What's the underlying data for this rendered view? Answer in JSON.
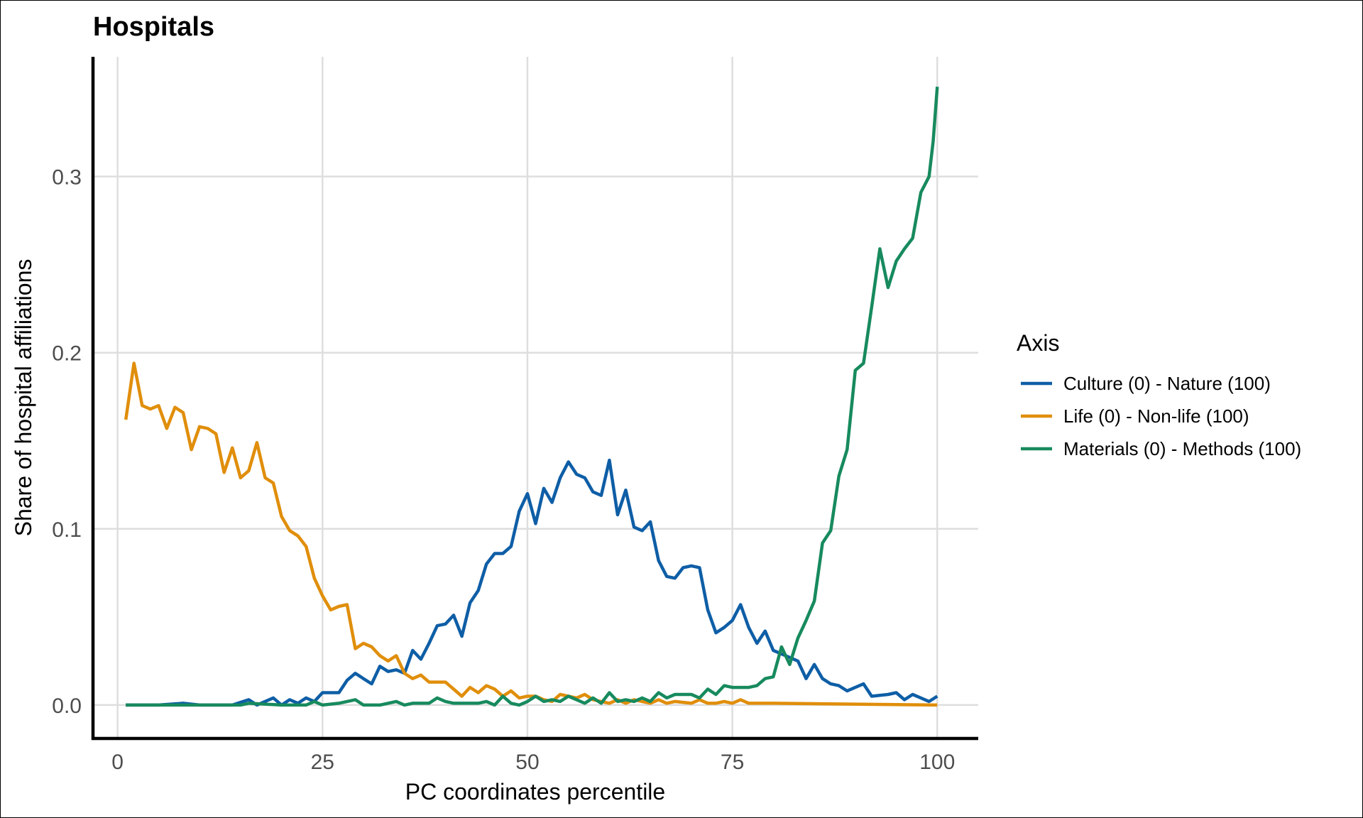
{
  "chart_data": {
    "type": "line",
    "title": "Hospitals",
    "xlabel": "PC coordinates percentile",
    "ylabel": "Share of hospital affiliations",
    "xlim": [
      -3,
      105
    ],
    "ylim": [
      -0.019,
      0.368
    ],
    "xticks": [
      0,
      25,
      50,
      75,
      100
    ],
    "xtick_labels": [
      "0",
      "25",
      "50",
      "75",
      "100"
    ],
    "yticks": [
      0.0,
      0.1,
      0.2,
      0.3
    ],
    "ytick_labels": [
      "0.0",
      "0.1",
      "0.2",
      "0.3"
    ],
    "grid": true,
    "legend": {
      "title": "Axis",
      "placement": "right"
    },
    "series": [
      {
        "name": "Culture (0) - Nature (100)",
        "color": "#0e5ea6",
        "points": [
          [
            1,
            0
          ],
          [
            5,
            0
          ],
          [
            8,
            0.001
          ],
          [
            10,
            0
          ],
          [
            14,
            0
          ],
          [
            16,
            0.003
          ],
          [
            17,
            0
          ],
          [
            19,
            0.004
          ],
          [
            20,
            0
          ],
          [
            21,
            0.003
          ],
          [
            22,
            0.001
          ],
          [
            23,
            0.004
          ],
          [
            24,
            0.002
          ],
          [
            25,
            0.007
          ],
          [
            27,
            0.007
          ],
          [
            28,
            0.014
          ],
          [
            29,
            0.018
          ],
          [
            30,
            0.015
          ],
          [
            31,
            0.012
          ],
          [
            32,
            0.022
          ],
          [
            33,
            0.019
          ],
          [
            34,
            0.02
          ],
          [
            35,
            0.018
          ],
          [
            36,
            0.031
          ],
          [
            37,
            0.026
          ],
          [
            38,
            0.035
          ],
          [
            39,
            0.045
          ],
          [
            40,
            0.046
          ],
          [
            41,
            0.051
          ],
          [
            42,
            0.039
          ],
          [
            43,
            0.058
          ],
          [
            44,
            0.065
          ],
          [
            45,
            0.08
          ],
          [
            46,
            0.086
          ],
          [
            47,
            0.086
          ],
          [
            48,
            0.09
          ],
          [
            49,
            0.11
          ],
          [
            50,
            0.12
          ],
          [
            51,
            0.103
          ],
          [
            52,
            0.123
          ],
          [
            53,
            0.115
          ],
          [
            54,
            0.129
          ],
          [
            55,
            0.138
          ],
          [
            56,
            0.131
          ],
          [
            57,
            0.129
          ],
          [
            58,
            0.121
          ],
          [
            59,
            0.119
          ],
          [
            60,
            0.139
          ],
          [
            61,
            0.108
          ],
          [
            62,
            0.122
          ],
          [
            63,
            0.101
          ],
          [
            64,
            0.099
          ],
          [
            65,
            0.104
          ],
          [
            66,
            0.082
          ],
          [
            67,
            0.073
          ],
          [
            68,
            0.072
          ],
          [
            69,
            0.078
          ],
          [
            70,
            0.079
          ],
          [
            71,
            0.078
          ],
          [
            72,
            0.054
          ],
          [
            73,
            0.041
          ],
          [
            74,
            0.044
          ],
          [
            75,
            0.048
          ],
          [
            76,
            0.057
          ],
          [
            77,
            0.044
          ],
          [
            78,
            0.035
          ],
          [
            79,
            0.042
          ],
          [
            80,
            0.031
          ],
          [
            81,
            0.029
          ],
          [
            82,
            0.027
          ],
          [
            83,
            0.025
          ],
          [
            84,
            0.015
          ],
          [
            85,
            0.023
          ],
          [
            86,
            0.015
          ],
          [
            87,
            0.012
          ],
          [
            88,
            0.011
          ],
          [
            89,
            0.008
          ],
          [
            90,
            0.01
          ],
          [
            91,
            0.012
          ],
          [
            92,
            0.005
          ],
          [
            94,
            0.006
          ],
          [
            95,
            0.007
          ],
          [
            96,
            0.003
          ],
          [
            97,
            0.006
          ],
          [
            98,
            0.004
          ],
          [
            99,
            0.002
          ],
          [
            100,
            0.005
          ]
        ]
      },
      {
        "name": "Life (0) - Non-life (100)",
        "color": "#e08e0b",
        "points": [
          [
            1,
            0.162
          ],
          [
            2,
            0.194
          ],
          [
            3,
            0.17
          ],
          [
            4,
            0.168
          ],
          [
            5,
            0.17
          ],
          [
            6,
            0.157
          ],
          [
            7,
            0.169
          ],
          [
            8,
            0.166
          ],
          [
            9,
            0.145
          ],
          [
            10,
            0.158
          ],
          [
            11,
            0.157
          ],
          [
            12,
            0.154
          ],
          [
            13,
            0.132
          ],
          [
            14,
            0.146
          ],
          [
            15,
            0.129
          ],
          [
            16,
            0.133
          ],
          [
            17,
            0.149
          ],
          [
            18,
            0.129
          ],
          [
            19,
            0.126
          ],
          [
            20,
            0.107
          ],
          [
            21,
            0.099
          ],
          [
            22,
            0.096
          ],
          [
            23,
            0.09
          ],
          [
            24,
            0.072
          ],
          [
            25,
            0.062
          ],
          [
            26,
            0.054
          ],
          [
            27,
            0.056
          ],
          [
            28,
            0.057
          ],
          [
            29,
            0.032
          ],
          [
            30,
            0.035
          ],
          [
            31,
            0.033
          ],
          [
            32,
            0.028
          ],
          [
            33,
            0.025
          ],
          [
            34,
            0.028
          ],
          [
            35,
            0.018
          ],
          [
            36,
            0.015
          ],
          [
            37,
            0.017
          ],
          [
            38,
            0.013
          ],
          [
            39,
            0.013
          ],
          [
            40,
            0.013
          ],
          [
            41,
            0.009
          ],
          [
            42,
            0.005
          ],
          [
            43,
            0.01
          ],
          [
            44,
            0.007
          ],
          [
            45,
            0.011
          ],
          [
            46,
            0.009
          ],
          [
            47,
            0.005
          ],
          [
            48,
            0.008
          ],
          [
            49,
            0.004
          ],
          [
            50,
            0.005
          ],
          [
            51,
            0.005
          ],
          [
            52,
            0.003
          ],
          [
            53,
            0.002
          ],
          [
            54,
            0.006
          ],
          [
            55,
            0.005
          ],
          [
            56,
            0.004
          ],
          [
            57,
            0.006
          ],
          [
            58,
            0.003
          ],
          [
            60,
            0.001
          ],
          [
            61,
            0.003
          ],
          [
            62,
            0.001
          ],
          [
            63,
            0.003
          ],
          [
            64,
            0.002
          ],
          [
            65,
            0.001
          ],
          [
            66,
            0.003
          ],
          [
            67,
            0.001
          ],
          [
            68,
            0.002
          ],
          [
            70,
            0.001
          ],
          [
            71,
            0.003
          ],
          [
            72,
            0.001
          ],
          [
            73,
            0.001
          ],
          [
            74,
            0.002
          ],
          [
            75,
            0.001
          ],
          [
            76,
            0.003
          ],
          [
            77,
            0.001
          ],
          [
            80,
            0.001
          ],
          [
            100,
            0
          ]
        ]
      },
      {
        "name": "Materials (0) - Methods (100)",
        "color": "#178a5e",
        "points": [
          [
            1,
            0
          ],
          [
            10,
            0
          ],
          [
            15,
            0
          ],
          [
            16,
            0.001
          ],
          [
            20,
            0
          ],
          [
            23,
            0
          ],
          [
            24,
            0.002
          ],
          [
            25,
            0
          ],
          [
            27,
            0.001
          ],
          [
            29,
            0.003
          ],
          [
            30,
            0
          ],
          [
            32,
            0
          ],
          [
            34,
            0.002
          ],
          [
            35,
            0
          ],
          [
            36,
            0.001
          ],
          [
            38,
            0.001
          ],
          [
            39,
            0.004
          ],
          [
            40,
            0.002
          ],
          [
            41,
            0.001
          ],
          [
            42,
            0.001
          ],
          [
            43,
            0.001
          ],
          [
            44,
            0.001
          ],
          [
            45,
            0.002
          ],
          [
            46,
            0
          ],
          [
            47,
            0.005
          ],
          [
            48,
            0.001
          ],
          [
            49,
            0
          ],
          [
            50,
            0.002
          ],
          [
            51,
            0.005
          ],
          [
            52,
            0.002
          ],
          [
            53,
            0.003
          ],
          [
            54,
            0.002
          ],
          [
            55,
            0.005
          ],
          [
            56,
            0.003
          ],
          [
            57,
            0.001
          ],
          [
            58,
            0.004
          ],
          [
            59,
            0.001
          ],
          [
            60,
            0.007
          ],
          [
            61,
            0.002
          ],
          [
            62,
            0.003
          ],
          [
            63,
            0.002
          ],
          [
            64,
            0.004
          ],
          [
            65,
            0.002
          ],
          [
            66,
            0.007
          ],
          [
            67,
            0.004
          ],
          [
            68,
            0.006
          ],
          [
            69,
            0.006
          ],
          [
            70,
            0.006
          ],
          [
            71,
            0.004
          ],
          [
            72,
            0.009
          ],
          [
            73,
            0.006
          ],
          [
            74,
            0.011
          ],
          [
            75,
            0.01
          ],
          [
            76,
            0.01
          ],
          [
            77,
            0.01
          ],
          [
            78,
            0.011
          ],
          [
            79,
            0.015
          ],
          [
            80,
            0.016
          ],
          [
            81,
            0.033
          ],
          [
            82,
            0.023
          ],
          [
            83,
            0.038
          ],
          [
            84,
            0.048
          ],
          [
            85,
            0.059
          ],
          [
            86,
            0.092
          ],
          [
            87,
            0.099
          ],
          [
            88,
            0.13
          ],
          [
            89,
            0.145
          ],
          [
            90,
            0.19
          ],
          [
            91,
            0.194
          ],
          [
            92,
            0.226
          ],
          [
            93,
            0.259
          ],
          [
            94,
            0.237
          ],
          [
            95,
            0.252
          ],
          [
            96,
            0.259
          ],
          [
            97,
            0.265
          ],
          [
            98,
            0.291
          ],
          [
            99,
            0.3
          ],
          [
            99.5,
            0.32
          ],
          [
            100,
            0.351
          ]
        ]
      }
    ]
  }
}
